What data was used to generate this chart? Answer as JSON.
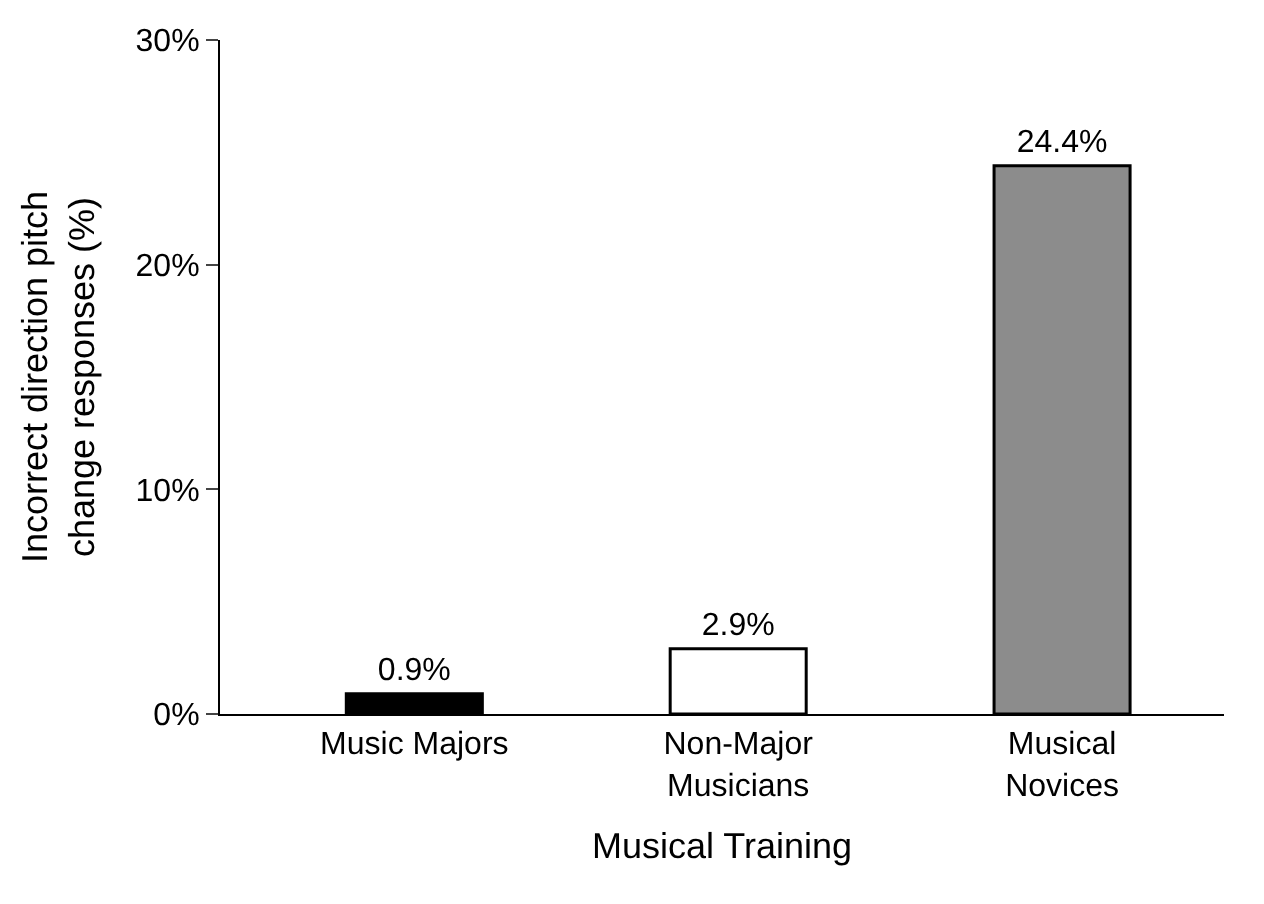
{
  "chart_data": {
    "type": "bar",
    "xlabel": "Musical Training",
    "ylabel": "Incorrect direction pitch\nchange responses (%)",
    "categories": [
      "Music Majors",
      "Non-Major\nMusicians",
      "Musical\nNovices"
    ],
    "values": [
      0.9,
      2.9,
      24.4
    ],
    "colors": [
      "#000000",
      "#ffffff",
      "#8c8c8c"
    ],
    "value_labels": [
      "0.9%",
      "2.9%",
      "24.4%"
    ],
    "ylim": [
      0,
      30
    ],
    "yticks": [
      {
        "value": 0,
        "label": "0%"
      },
      {
        "value": 10,
        "label": "10%"
      },
      {
        "value": 20,
        "label": "20%"
      },
      {
        "value": 30,
        "label": "30%"
      }
    ],
    "legend": false
  }
}
